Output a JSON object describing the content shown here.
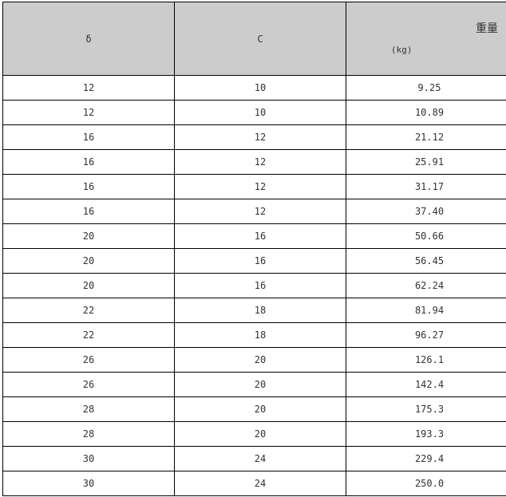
{
  "headers": {
    "delta": "δ",
    "c": "C",
    "weight": "重量",
    "weight_unit": "(kg)"
  },
  "rows": [
    [
      "12",
      "10",
      "9.25"
    ],
    [
      "12",
      "10",
      "10.89"
    ],
    [
      "16",
      "12",
      "21.12"
    ],
    [
      "16",
      "12",
      "25.91"
    ],
    [
      "16",
      "12",
      "31.17"
    ],
    [
      "16",
      "12",
      "37.40"
    ],
    [
      "20",
      "16",
      "50.66"
    ],
    [
      "20",
      "16",
      "56.45"
    ],
    [
      "20",
      "16",
      "62.24"
    ],
    [
      "22",
      "18",
      "81.94"
    ],
    [
      "22",
      "18",
      "96.27"
    ],
    [
      "26",
      "20",
      "126.1"
    ],
    [
      "26",
      "20",
      "142.4"
    ],
    [
      "28",
      "20",
      "175.3"
    ],
    [
      "28",
      "20",
      "193.3"
    ],
    [
      "30",
      "24",
      "229.4"
    ],
    [
      "30",
      "24",
      "250.0"
    ]
  ],
  "colors": {
    "header_bg": "#cccccc",
    "border": "#000000",
    "text": "#333333"
  }
}
